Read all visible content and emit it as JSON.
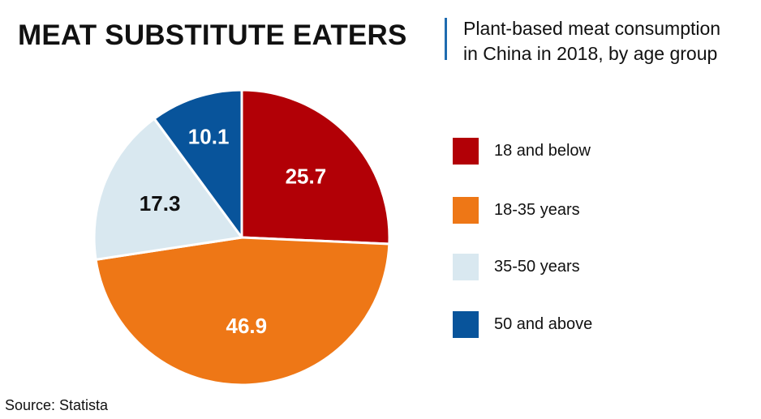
{
  "header": {
    "title": "MEAT SUBSTITUTE EATERS",
    "subtitle_line1": "Plant-based meat consumption",
    "subtitle_line2": "in China in 2018, by age group"
  },
  "source": "Source: Statista",
  "colors": {
    "accent_divider": "#1f6cb0"
  },
  "chart_data": {
    "type": "pie",
    "title": "MEAT SUBSTITUTE EATERS",
    "subtitle": "Plant-based meat consumption in China in 2018, by age group",
    "legend_position": "right",
    "slices": [
      {
        "label": "18 and below",
        "value": 25.7,
        "display": "25.7",
        "color": "#b20006",
        "text_color": "#ffffff"
      },
      {
        "label": "18-35 years",
        "value": 46.9,
        "display": "46.9",
        "color": "#ee7716",
        "text_color": "#ffffff"
      },
      {
        "label": "35-50 years",
        "value": 17.3,
        "display": "17.3",
        "color": "#d9e8f0",
        "text_color": "#111111"
      },
      {
        "label": "50 and above",
        "value": 10.1,
        "display": "10.1",
        "color": "#08549b",
        "text_color": "#ffffff"
      }
    ]
  }
}
